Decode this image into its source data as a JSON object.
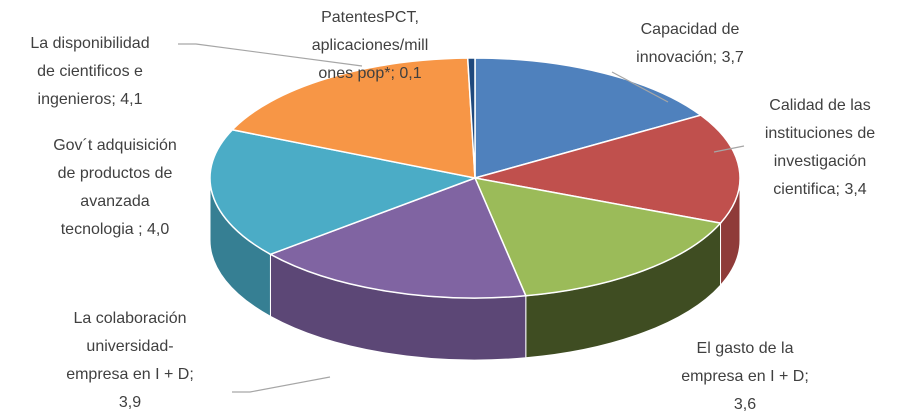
{
  "chart_data": {
    "type": "pie3d",
    "labels": [
      [
        "Capacidad de",
        "innovación; 3,7"
      ],
      [
        "Calidad de las",
        "instituciones de",
        "investigación",
        "cientifica; 3,4"
      ],
      [
        "El gasto de la",
        "empresa en I + D;",
        "3,6"
      ],
      [
        "La colaboración",
        "universidad-",
        "empresa en I + D;",
        "3,9"
      ],
      [
        "Gov´t adquisición",
        "de productos de",
        "avanzada",
        "tecnologia ; 4,0"
      ],
      [
        "La disponibilidad",
        "de cientificos e",
        "ingenieros; 4,1"
      ],
      [
        "PatentesPCT,",
        "aplicaciones/mill",
        "ones pop*; 0,1"
      ]
    ],
    "values": [
      3.7,
      3.4,
      3.6,
      3.9,
      4.0,
      4.1,
      0.1
    ],
    "colors": [
      "#4f81bd",
      "#c0504d",
      "#9bbb59",
      "#8064a2",
      "#4bacc6",
      "#f79646",
      "#1f497d"
    ],
    "side_colors": [
      "#3a6190",
      "#8f3b39",
      "#3f4d22",
      "#5c4776",
      "#367f93",
      "#b66d2f",
      "#132f52"
    ]
  }
}
